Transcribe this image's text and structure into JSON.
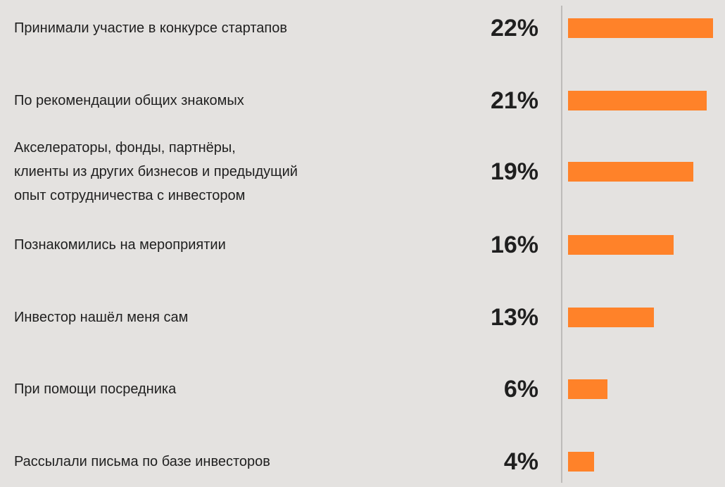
{
  "chart_data": {
    "type": "bar",
    "orientation": "horizontal",
    "categories": [
      "Принимали участие в конкурсе стартапов",
      "По рекомендации общих знакомых",
      "Акселераторы, фонды, партнёры,\nклиенты из других бизнесов и предыдущий\nопыт сотрудничества с инвестором",
      "Познакомились на мероприятии",
      "Инвестор нашёл меня сам",
      "При помощи посредника",
      "Рассылали письма по базе инвесторов"
    ],
    "values": [
      22,
      21,
      19,
      16,
      13,
      6,
      4
    ],
    "value_labels": [
      "22%",
      "21%",
      "19%",
      "16%",
      "13%",
      "6%",
      "4%"
    ],
    "unit": "%",
    "xlim": [
      0,
      22
    ],
    "bar_color": "#ff8229",
    "title": "",
    "xlabel": "",
    "ylabel": "",
    "grid": false
  }
}
